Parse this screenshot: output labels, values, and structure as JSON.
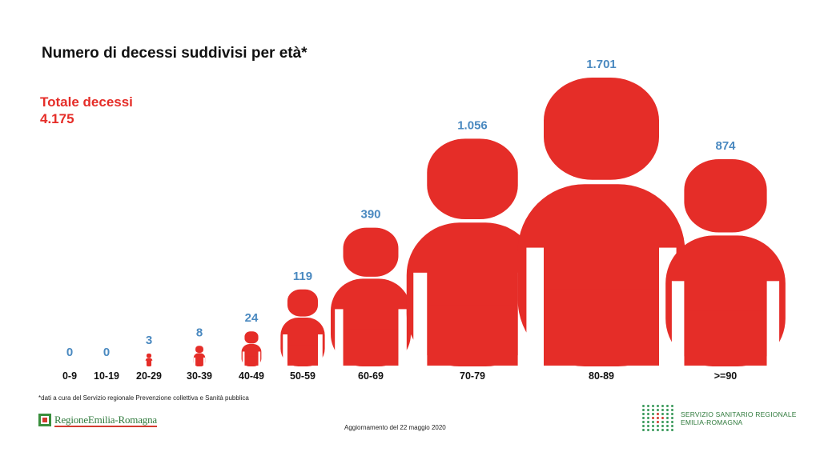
{
  "title": "Numero di decessi suddivisi per età*",
  "total": {
    "label": "Totale decessi",
    "value": "4.175"
  },
  "footnote": "*dati a cura del Servizio regionale Prevenzione collettiva e Sanità pubblica",
  "update_text": "Aggiornamento del 22 maggio 2020",
  "logos": {
    "region": "RegioneEmilia-Romagna",
    "ssr_line1": "SERVIZIO SANITARIO REGIONALE",
    "ssr_line2": "EMILIA-ROMAGNA"
  },
  "colors": {
    "figure": "#e52d28",
    "value_label": "#4a89c0",
    "category_label": "#111111",
    "accent_green": "#2f7a3c"
  },
  "chart_data": {
    "type": "bar",
    "mark": "person-pictogram",
    "categories": [
      "0-9",
      "10-19",
      "20-29",
      "30-39",
      "40-49",
      "50-59",
      "60-69",
      "70-79",
      "80-89",
      ">=90"
    ],
    "values": [
      0,
      0,
      3,
      8,
      24,
      119,
      390,
      1056,
      1701,
      874
    ],
    "value_labels": [
      "0",
      "0",
      "3",
      "8",
      "24",
      "119",
      "390",
      "1.056",
      "1.701",
      "874"
    ],
    "title": "Numero di decessi suddivisi per età*",
    "xlabel": "",
    "ylabel": "",
    "grid": false,
    "legend": "none"
  }
}
